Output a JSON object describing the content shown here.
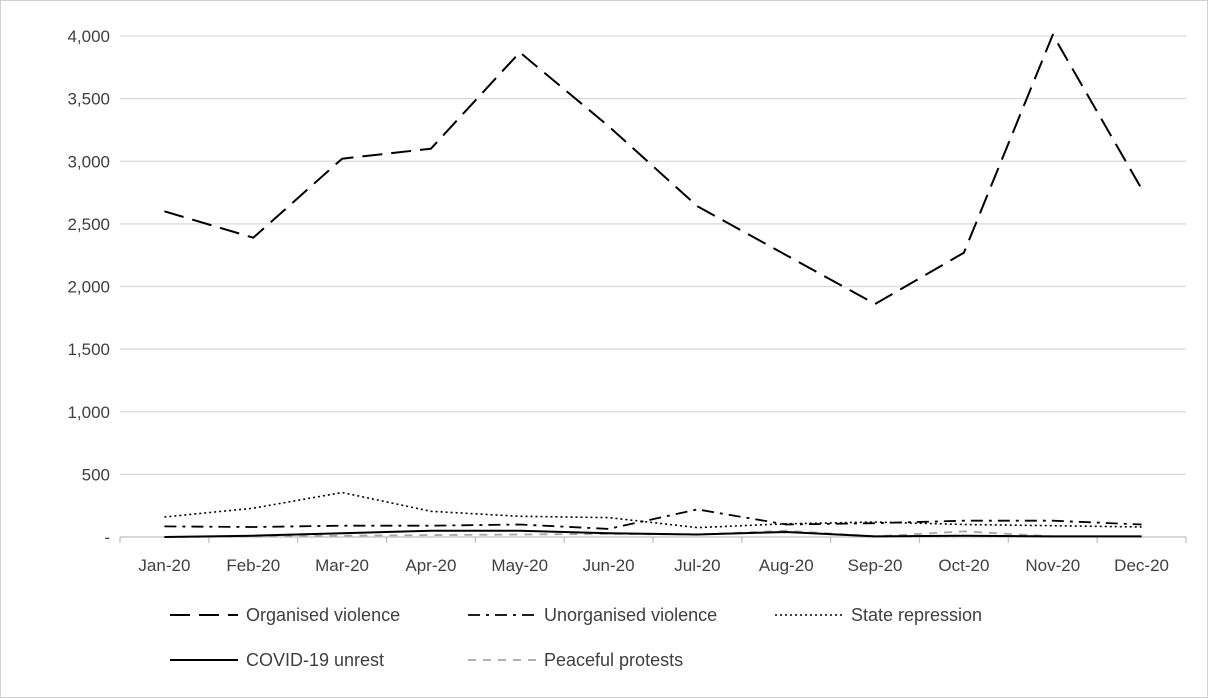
{
  "chart_data": {
    "type": "line",
    "categories": [
      "Jan-20",
      "Feb-20",
      "Mar-20",
      "Apr-20",
      "May-20",
      "Jun-20",
      "Jul-20",
      "Aug-20",
      "Sep-20",
      "Oct-20",
      "Nov-20",
      "Dec-20"
    ],
    "y_ticks": [
      "-",
      "500",
      "1,000",
      "1,500",
      "2,000",
      "2,500",
      "3,000",
      "3,500",
      "4,000"
    ],
    "ylim": [
      0,
      4000
    ],
    "grid": true,
    "legend_position": "bottom",
    "series": [
      {
        "name": "Organised violence",
        "color": "#000000",
        "style": "long-dash",
        "values": [
          2600,
          2390,
          3020,
          3100,
          3870,
          3280,
          2640,
          2250,
          1860,
          2270,
          4010,
          2780
        ]
      },
      {
        "name": "Unorganised violence",
        "color": "#000000",
        "style": "dash-dot",
        "values": [
          85,
          80,
          90,
          90,
          100,
          65,
          220,
          100,
          110,
          130,
          130,
          100
        ]
      },
      {
        "name": "State repression",
        "color": "#000000",
        "style": "dotted",
        "values": [
          160,
          230,
          355,
          205,
          165,
          155,
          75,
          105,
          120,
          100,
          90,
          80
        ]
      },
      {
        "name": "COVID-19 unrest",
        "color": "#000000",
        "style": "solid",
        "values": [
          0,
          10,
          30,
          50,
          50,
          30,
          20,
          40,
          5,
          10,
          5,
          5
        ]
      },
      {
        "name": "Peaceful protests",
        "color": "#a6a6a6",
        "style": "short-dash",
        "values": [
          0,
          5,
          10,
          15,
          20,
          25,
          20,
          50,
          5,
          45,
          5,
          5
        ]
      }
    ]
  }
}
